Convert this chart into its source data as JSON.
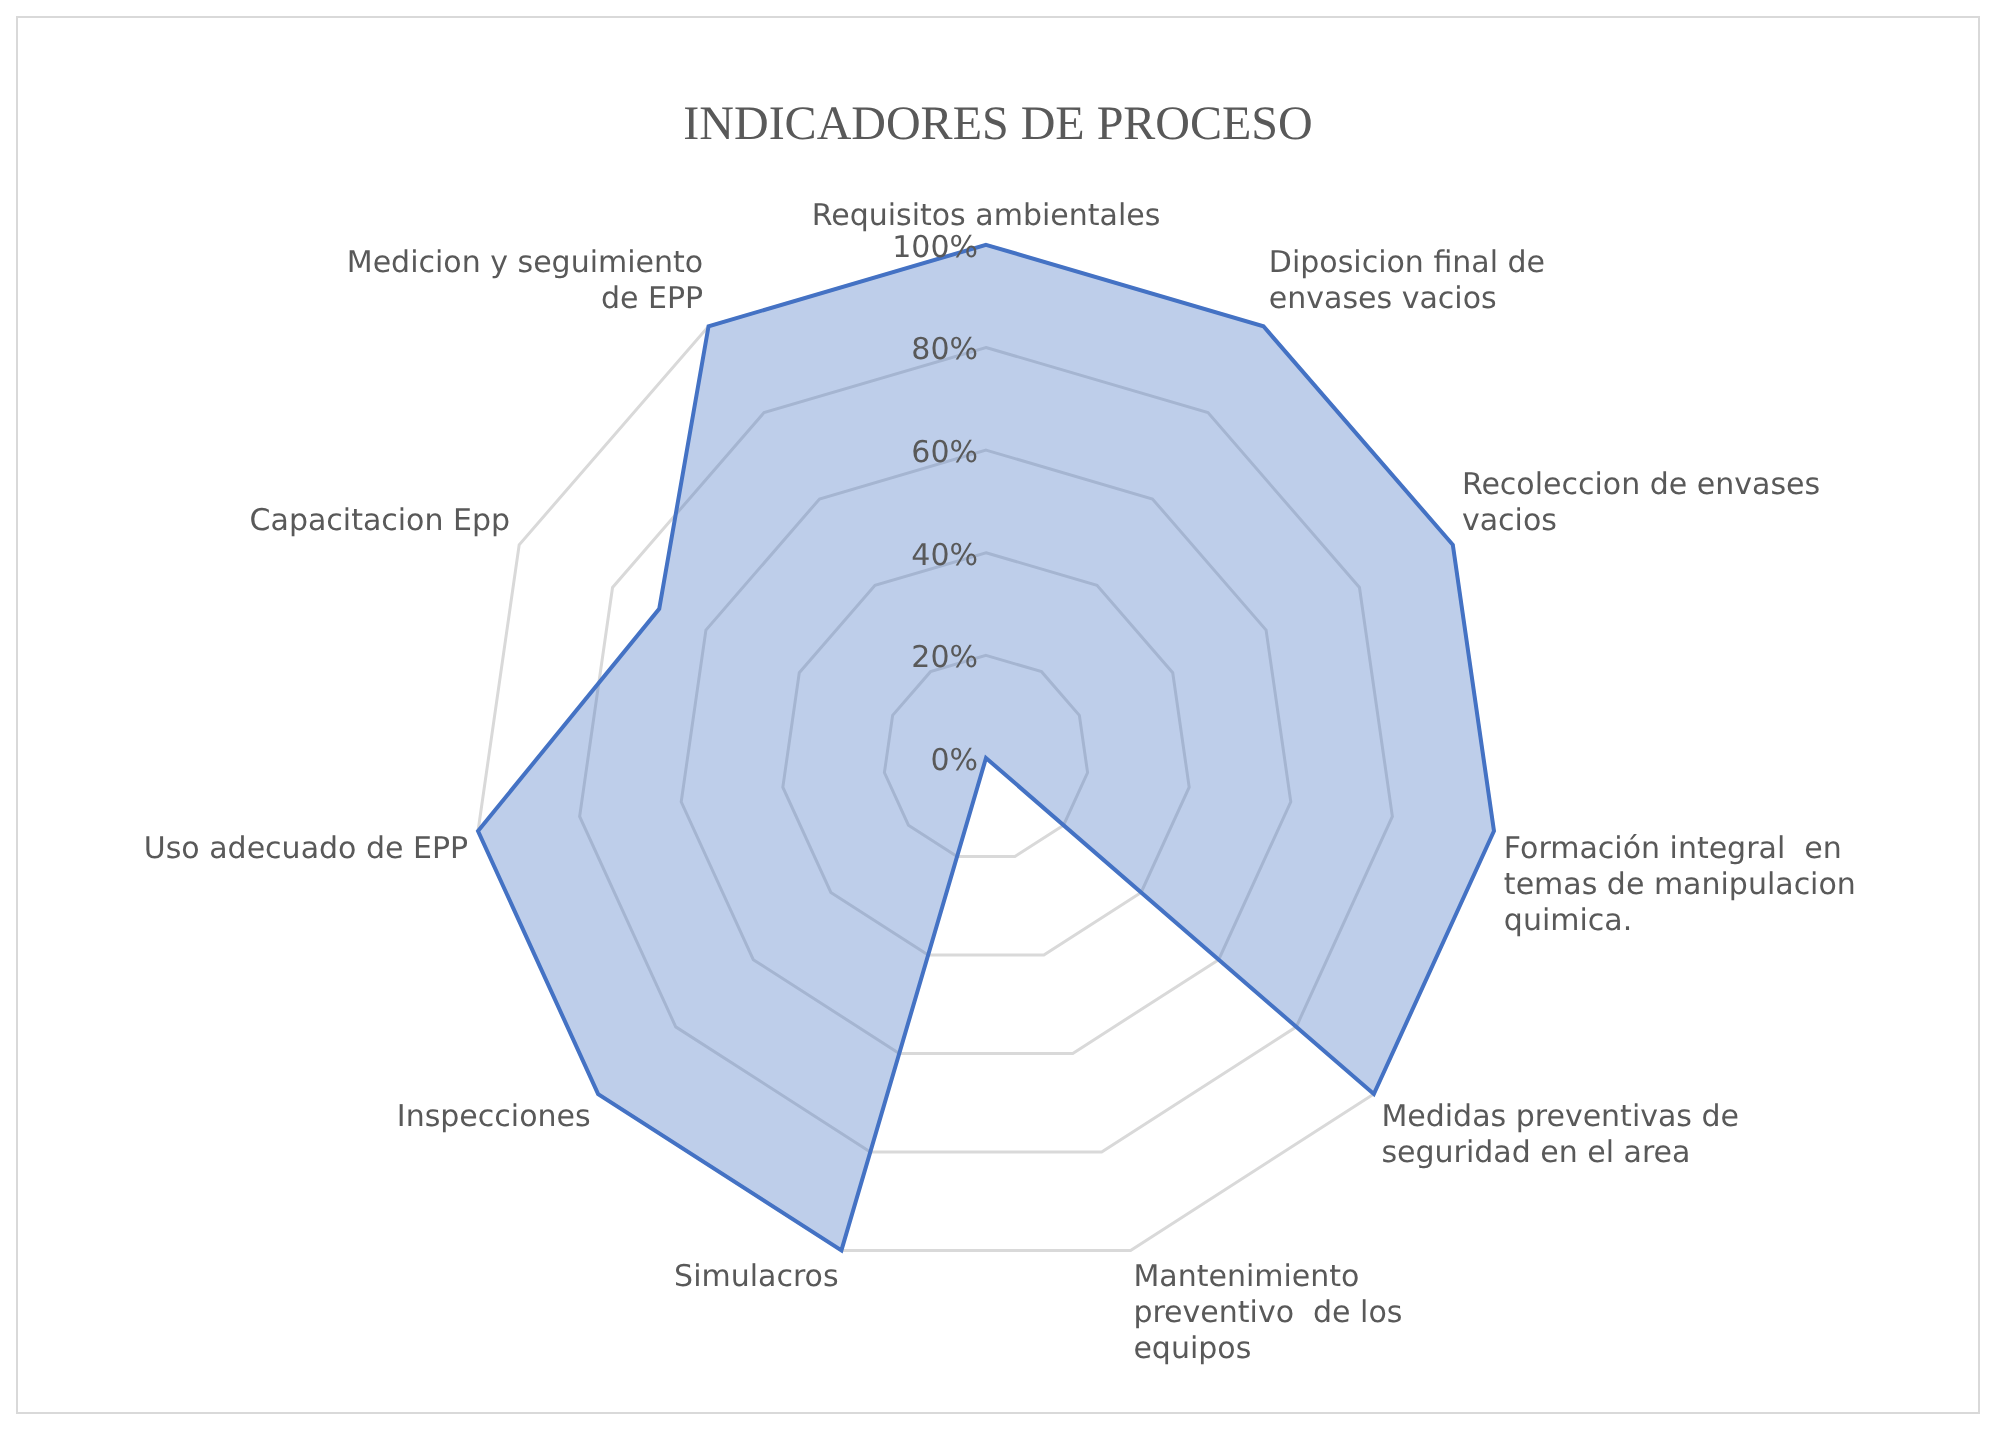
{
  "chart_data": {
    "type": "radar",
    "title": "INDICADORES DE PROCESO",
    "categories": [
      "Requisitos ambientales",
      "Diposicion final de envases vacios",
      "Recoleccion de envases vacios",
      "Formación integral  en temas de manipulacion quimica.",
      "Medidas preventivas de seguridad en el area",
      "Mantenimiento preventivo  de los equipos",
      "Simulacros",
      "Inspecciones",
      "Uso adecuado de EPP",
      "Capacitacion Epp",
      "Medicion y seguimiento de EPP"
    ],
    "series": [
      {
        "color": "#4472c4",
        "values": [
          100,
          100,
          100,
          100,
          100,
          0,
          100,
          100,
          100,
          70,
          100
        ]
      }
    ],
    "ylim": [
      0,
      100
    ],
    "yticks": [
      {
        "value": 0,
        "label": "0%"
      },
      {
        "value": 20,
        "label": "20%"
      },
      {
        "value": 40,
        "label": "40%"
      },
      {
        "value": 60,
        "label": "60%"
      },
      {
        "value": 80,
        "label": "80%"
      },
      {
        "value": 100,
        "label": "100%"
      }
    ],
    "grid": true,
    "legend": false
  }
}
